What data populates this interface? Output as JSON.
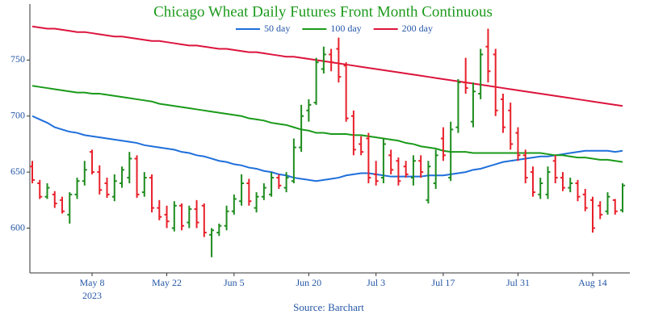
{
  "chart_data": {
    "type": "ohlc",
    "title": "Chicago Wheat Daily Futures Front Month Continuous",
    "source": "Source: Barchart",
    "categories": [
      null,
      null,
      null,
      null,
      null,
      null,
      null,
      null,
      "May 8",
      null,
      null,
      null,
      null,
      null,
      null,
      null,
      null,
      null,
      "May 22",
      null,
      null,
      null,
      null,
      null,
      null,
      null,
      null,
      "Jun 5",
      null,
      null,
      null,
      null,
      null,
      null,
      null,
      null,
      null,
      "Jun 20",
      null,
      null,
      null,
      null,
      null,
      null,
      null,
      null,
      "Jul 3",
      null,
      null,
      null,
      null,
      null,
      null,
      null,
      null,
      "Jul 17",
      null,
      null,
      null,
      null,
      null,
      null,
      null,
      null,
      null,
      "Jul 31",
      null,
      null,
      null,
      null,
      null,
      null,
      null,
      null,
      null,
      "Aug 14",
      null,
      null,
      null,
      null
    ],
    "x_year_label": "2023",
    "open": [
      655,
      640,
      628,
      630,
      625,
      612,
      630,
      642,
      668,
      650,
      640,
      628,
      640,
      645,
      662,
      632,
      645,
      618,
      612,
      600,
      620,
      605,
      617,
      620,
      594,
      596,
      602,
      615,
      624,
      640,
      618,
      628,
      630,
      645,
      636,
      642,
      672,
      705,
      712,
      742,
      755,
      760,
      745,
      700,
      675,
      680,
      648,
      645,
      665,
      660,
      655,
      645,
      660,
      625,
      640,
      680,
      645,
      690,
      730,
      695,
      720,
      762,
      755,
      715,
      705,
      685,
      665,
      650,
      630,
      630,
      660,
      645,
      636,
      640,
      630,
      625,
      620,
      615,
      625,
      616
    ],
    "high": [
      660,
      643,
      640,
      633,
      628,
      632,
      645,
      660,
      670,
      656,
      645,
      648,
      655,
      668,
      665,
      650,
      648,
      625,
      620,
      624,
      622,
      620,
      625,
      622,
      600,
      604,
      620,
      630,
      648,
      644,
      632,
      640,
      650,
      648,
      650,
      680,
      710,
      715,
      752,
      762,
      760,
      770,
      748,
      705,
      682,
      685,
      660,
      680,
      670,
      663,
      660,
      665,
      665,
      660,
      670,
      690,
      695,
      733,
      752,
      730,
      760,
      778,
      760,
      720,
      712,
      690,
      670,
      655,
      645,
      655,
      665,
      650,
      645,
      643,
      635,
      628,
      624,
      632,
      626,
      640
    ],
    "low": [
      640,
      626,
      626,
      618,
      613,
      604,
      626,
      638,
      648,
      630,
      627,
      624,
      636,
      640,
      627,
      628,
      614,
      607,
      600,
      597,
      598,
      600,
      600,
      592,
      574,
      593,
      598,
      612,
      620,
      620,
      614,
      625,
      628,
      635,
      632,
      640,
      668,
      695,
      710,
      738,
      740,
      730,
      695,
      665,
      665,
      640,
      638,
      640,
      648,
      638,
      645,
      638,
      645,
      622,
      635,
      660,
      642,
      685,
      720,
      690,
      715,
      730,
      700,
      685,
      670,
      660,
      640,
      628,
      626,
      626,
      640,
      633,
      632,
      624,
      615,
      596,
      608,
      612,
      612,
      614
    ],
    "close": [
      643,
      628,
      636,
      622,
      615,
      630,
      642,
      652,
      650,
      634,
      630,
      642,
      652,
      662,
      630,
      645,
      618,
      610,
      606,
      620,
      602,
      617,
      605,
      596,
      598,
      602,
      615,
      626,
      640,
      624,
      628,
      636,
      645,
      638,
      645,
      672,
      700,
      710,
      748,
      755,
      748,
      735,
      698,
      670,
      668,
      645,
      642,
      675,
      652,
      642,
      648,
      660,
      650,
      655,
      665,
      665,
      688,
      730,
      725,
      722,
      755,
      740,
      705,
      690,
      675,
      665,
      645,
      632,
      640,
      650,
      645,
      636,
      640,
      628,
      618,
      600,
      612,
      628,
      615,
      638
    ],
    "up_color": "#1e8c1e",
    "down_color": "#e8202a",
    "series": [
      {
        "name": "50 day",
        "color": "#1f6fdb",
        "values": [
          700,
          697,
          694,
          690,
          688,
          686,
          685,
          683,
          682,
          681,
          680,
          679,
          678,
          677,
          676,
          674,
          673,
          672,
          671,
          670,
          668,
          667,
          665,
          664,
          662,
          660,
          659,
          657,
          656,
          654,
          653,
          651,
          650,
          648,
          647,
          645,
          644,
          643,
          642,
          643,
          644,
          645,
          647,
          648,
          649,
          649,
          648,
          647,
          646,
          646,
          646,
          646,
          646,
          647,
          647,
          647,
          648,
          649,
          650,
          652,
          653,
          655,
          657,
          659,
          660,
          661,
          662,
          663,
          664,
          664,
          665,
          666,
          667,
          668,
          669,
          669,
          669,
          669,
          668,
          669
        ]
      },
      {
        "name": "100 day",
        "color": "#1a9a1a",
        "values": [
          727,
          726,
          725,
          724,
          723,
          722,
          721,
          721,
          720,
          720,
          719,
          718,
          717,
          716,
          715,
          714,
          713,
          711,
          710,
          709,
          708,
          707,
          706,
          705,
          704,
          703,
          702,
          701,
          700,
          698,
          697,
          696,
          694,
          693,
          692,
          690,
          688,
          687,
          685,
          685,
          684,
          684,
          684,
          683,
          683,
          682,
          681,
          680,
          679,
          678,
          676,
          675,
          673,
          672,
          671,
          669,
          668,
          668,
          668,
          667,
          667,
          667,
          667,
          667,
          667,
          667,
          667,
          667,
          667,
          666,
          665,
          665,
          664,
          663,
          663,
          662,
          661,
          661,
          660,
          659
        ]
      },
      {
        "name": "200 day",
        "color": "#dc143c",
        "values": [
          780,
          779,
          778,
          778,
          777,
          776,
          775,
          775,
          774,
          773,
          772,
          771,
          771,
          770,
          769,
          768,
          767,
          767,
          766,
          765,
          764,
          763,
          763,
          762,
          761,
          760,
          760,
          759,
          758,
          757,
          757,
          756,
          755,
          754,
          753,
          753,
          752,
          751,
          750,
          749,
          748,
          747,
          746,
          745,
          744,
          743,
          742,
          741,
          740,
          739,
          738,
          737,
          736,
          735,
          734,
          733,
          732,
          731,
          730,
          729,
          728,
          727,
          726,
          725,
          724,
          723,
          722,
          721,
          720,
          719,
          718,
          717,
          716,
          715,
          714,
          713,
          712,
          711,
          710,
          709
        ]
      }
    ],
    "ylim": [
      560,
      800
    ],
    "yticks": [
      600,
      650,
      700,
      750
    ],
    "legend": "top"
  }
}
